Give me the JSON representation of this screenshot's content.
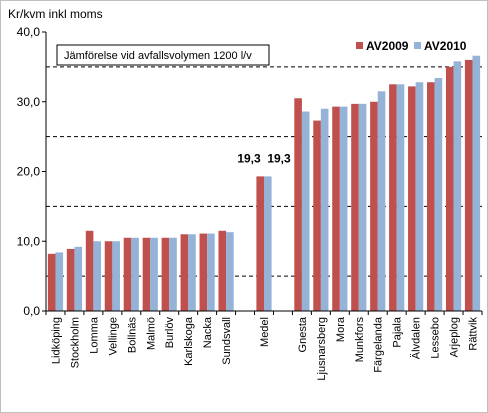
{
  "chart_data": {
    "type": "bar",
    "title": "",
    "ylabel": "Kr/kvm inkl moms",
    "xlabel": "",
    "annotation": "Jämförelse vid avfallsvolymen 1200 l/v",
    "ylim": [
      0,
      40
    ],
    "yticks": [
      "0,0",
      "10,0",
      "20,0",
      "30,0",
      "40,0"
    ],
    "gridlines": [
      5,
      15,
      25,
      35
    ],
    "legend_position": "top-right",
    "categories": [
      "Lidköping",
      "Stockholm",
      "Lomma",
      "Vellinge",
      "Bollnäs",
      "Malmö",
      "Burlöv",
      "Karlskoga",
      "Nacka",
      "Sundsvall",
      "",
      "Medel",
      "",
      "Gnesta",
      "Ljusnarsberg",
      "Mora",
      "Munkfors",
      "Färgelanda",
      "Pajala",
      "Älvdalen",
      "Lessebo",
      "Arjeplog",
      "Rättvik"
    ],
    "series": [
      {
        "name": "AV2009",
        "color": "#c0504d",
        "values": [
          8.2,
          8.9,
          11.5,
          10.0,
          10.5,
          10.5,
          10.5,
          11.0,
          11.1,
          11.5,
          null,
          19.3,
          null,
          30.5,
          27.3,
          29.3,
          29.7,
          30.0,
          32.5,
          32.2,
          32.8,
          35.0,
          36.0
        ]
      },
      {
        "name": "AV2010",
        "color": "#95b3d7",
        "values": [
          8.4,
          9.2,
          10.0,
          10.0,
          10.5,
          10.5,
          10.5,
          11.0,
          11.1,
          11.3,
          null,
          19.3,
          null,
          28.6,
          29.0,
          29.3,
          29.7,
          31.5,
          32.5,
          32.8,
          33.4,
          35.8,
          36.6
        ]
      }
    ],
    "data_labels": [
      {
        "category": "Medel",
        "series": "AV2009",
        "text": "19,3"
      },
      {
        "category": "Medel",
        "series": "AV2010",
        "text": "19,3"
      }
    ]
  }
}
